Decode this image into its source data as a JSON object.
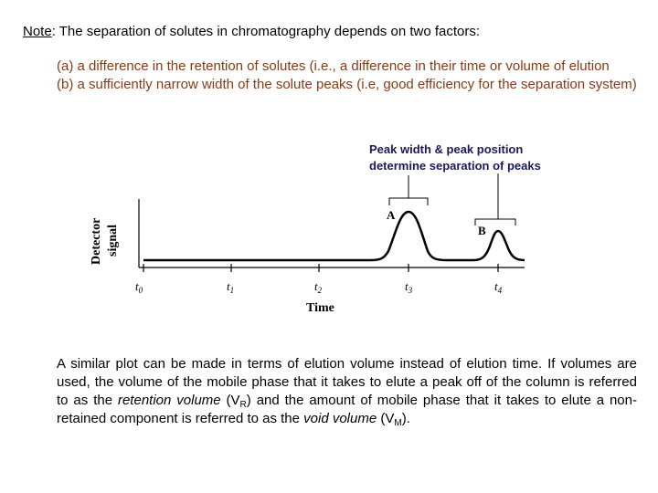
{
  "note": {
    "label": "Note",
    "text": ": The separation of solutes in chromatography depends on two factors:"
  },
  "items": [
    "(a) a difference in the retention of solutes (i.e., a difference in their time or volume of elution",
    "(b) a sufficiently narrow width of the solute peaks (i.e, good efficiency for the separation system)"
  ],
  "callout": {
    "line1": "Peak width & peak position",
    "line2": "determine separation of peaks"
  },
  "figure": {
    "ylabel1": "Detector",
    "ylabel2": "signal",
    "xlabel": "Time",
    "peak_a": "A",
    "peak_b": "B",
    "ticks": [
      {
        "t": "t",
        "sub": "0"
      },
      {
        "t": "t",
        "sub": "1"
      },
      {
        "t": "t",
        "sub": "2"
      },
      {
        "t": "t",
        "sub": "3"
      },
      {
        "t": "t",
        "sub": "4"
      }
    ]
  },
  "paragraph": {
    "p1": "A similar plot can be made in terms of elution volume instead of elution time.  If volumes are used, the volume of the mobile phase that it takes to elute a peak off of the column is referred to as the ",
    "term1": "retention volume",
    "p2": " (V",
    "sub1": "R",
    "p3": ") and the amount of mobile phase that it takes to elute a non-retained component is referred to as the ",
    "term2": "void volume",
    "p4": " (V",
    "sub2": "M",
    "p5": ")."
  }
}
